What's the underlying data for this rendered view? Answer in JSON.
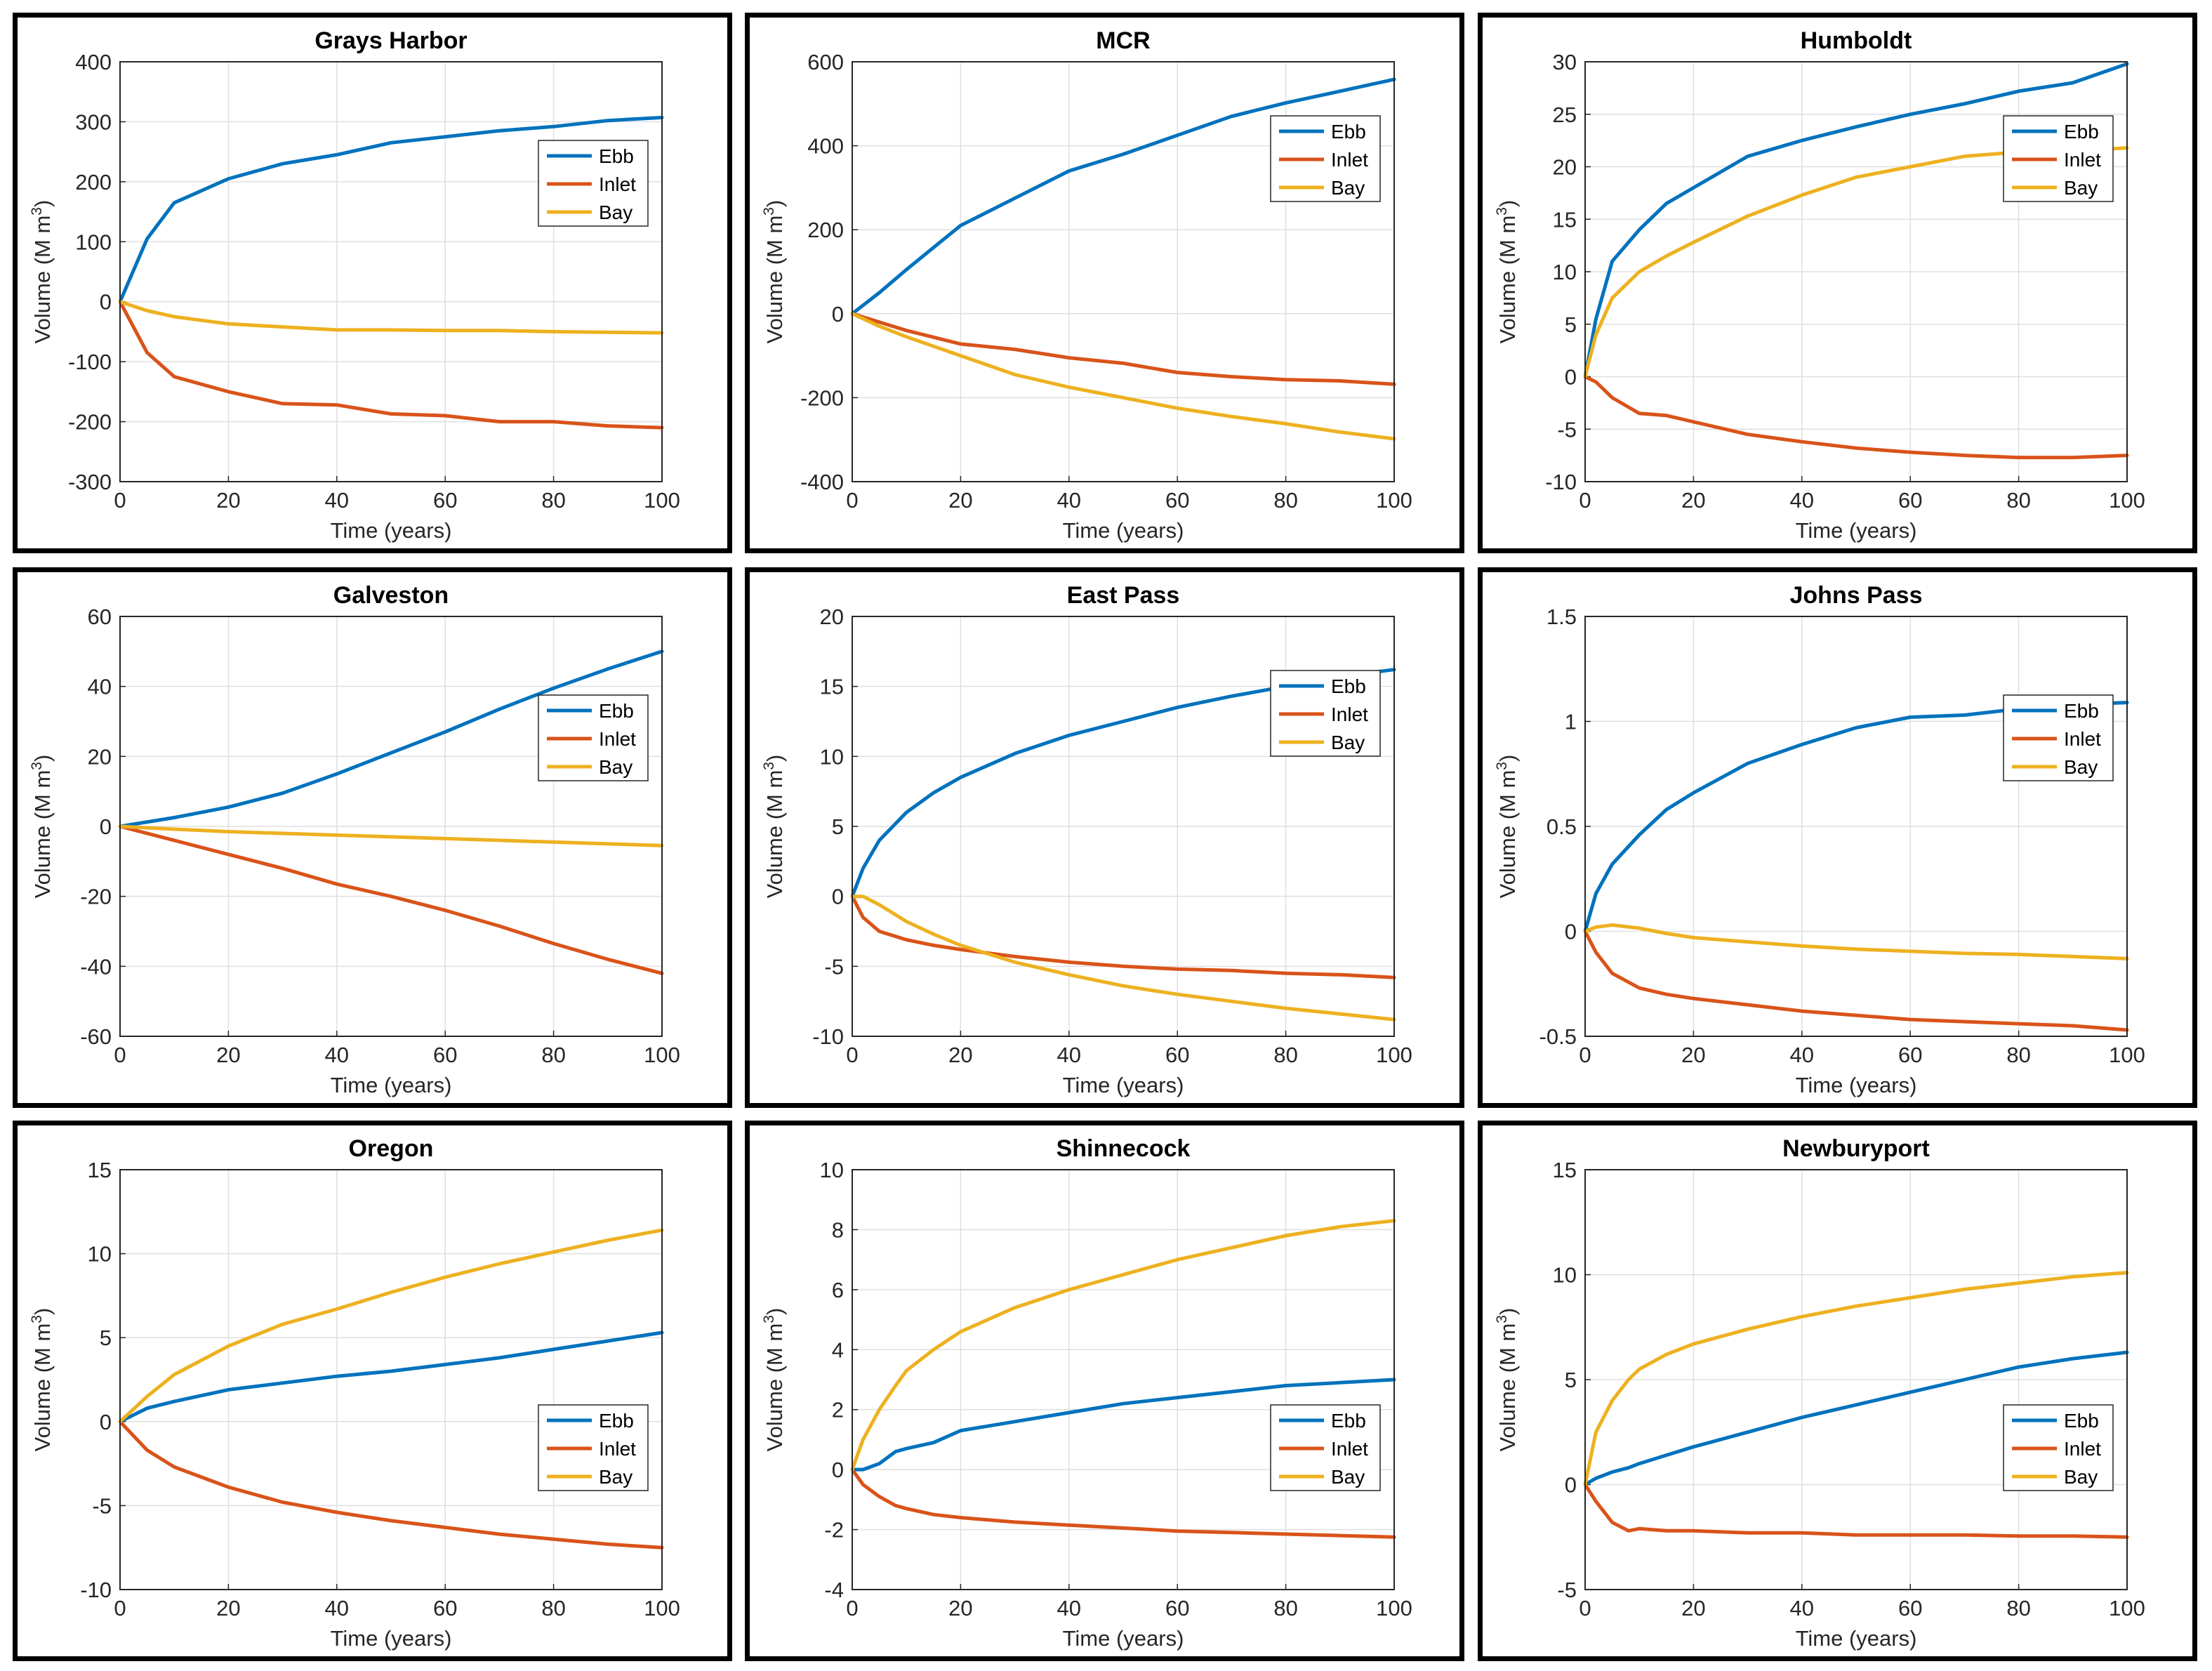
{
  "legend": [
    "Ebb",
    "Inlet",
    "Bay"
  ],
  "colors": {
    "Ebb": "#0072BD",
    "Inlet": "#D95319",
    "Bay": "#EDB120"
  },
  "xlabel": "Time (years)",
  "ylabel_main": "Volume (M m",
  "ylabel_sup": "3",
  "ylabel_close": ")",
  "chart_data": [
    {
      "type": "line",
      "title": "Grays Harbor",
      "legend_position": "right-middle",
      "xlim": [
        0,
        100
      ],
      "ylim": [
        -300,
        400
      ],
      "xticks": [
        0,
        20,
        40,
        60,
        80,
        100
      ],
      "yticks": [
        -300,
        -200,
        -100,
        0,
        100,
        200,
        300,
        400
      ],
      "x": [
        0,
        5,
        10,
        20,
        30,
        40,
        50,
        60,
        70,
        80,
        90,
        100
      ],
      "series": [
        {
          "name": "Ebb",
          "values": [
            0,
            105,
            165,
            205,
            230,
            245,
            265,
            275,
            285,
            292,
            302,
            307
          ]
        },
        {
          "name": "Inlet",
          "values": [
            0,
            -85,
            -125,
            -150,
            -170,
            -172,
            -187,
            -190,
            -200,
            -200,
            -207,
            -210
          ]
        },
        {
          "name": "Bay",
          "values": [
            0,
            -15,
            -25,
            -37,
            -42,
            -47,
            -47,
            -48,
            -48,
            -50,
            -51,
            -52
          ]
        }
      ]
    },
    {
      "type": "line",
      "title": "MCR",
      "legend_position": "right-upper",
      "xlim": [
        0,
        100
      ],
      "ylim": [
        -400,
        600
      ],
      "xticks": [
        0,
        20,
        40,
        60,
        80,
        100
      ],
      "yticks": [
        -400,
        -200,
        0,
        200,
        400,
        600
      ],
      "x": [
        0,
        5,
        10,
        20,
        30,
        40,
        50,
        60,
        70,
        80,
        90,
        100
      ],
      "series": [
        {
          "name": "Ebb",
          "values": [
            0,
            50,
            105,
            210,
            275,
            340,
            380,
            425,
            470,
            502,
            530,
            558
          ]
        },
        {
          "name": "Inlet",
          "values": [
            0,
            -20,
            -40,
            -72,
            -85,
            -105,
            -118,
            -140,
            -150,
            -157,
            -160,
            -168
          ]
        },
        {
          "name": "Bay",
          "values": [
            0,
            -30,
            -55,
            -100,
            -145,
            -175,
            -200,
            -225,
            -245,
            -262,
            -282,
            -298
          ]
        }
      ]
    },
    {
      "type": "line",
      "title": "Humboldt",
      "legend_position": "right-upper",
      "xlim": [
        0,
        100
      ],
      "ylim": [
        -10,
        30
      ],
      "xticks": [
        0,
        20,
        40,
        60,
        80,
        100
      ],
      "yticks": [
        -10,
        -5,
        0,
        5,
        10,
        15,
        20,
        25,
        30
      ],
      "x": [
        0,
        2,
        5,
        10,
        15,
        20,
        30,
        40,
        50,
        60,
        70,
        80,
        90,
        100
      ],
      "series": [
        {
          "name": "Ebb",
          "values": [
            0,
            5.5,
            11,
            14,
            16.5,
            18,
            21,
            22.5,
            23.8,
            25,
            26,
            27.2,
            28,
            29.8
          ]
        },
        {
          "name": "Inlet",
          "values": [
            0,
            -0.5,
            -2,
            -3.5,
            -3.7,
            -4.3,
            -5.5,
            -6.2,
            -6.8,
            -7.2,
            -7.5,
            -7.7,
            -7.7,
            -7.5
          ]
        },
        {
          "name": "Bay",
          "values": [
            0,
            4,
            7.5,
            10,
            11.5,
            12.8,
            15.3,
            17.3,
            19,
            20,
            21,
            21.4,
            21.5,
            21.8
          ]
        }
      ]
    },
    {
      "type": "line",
      "title": "Galveston",
      "legend_position": "right-middle",
      "xlim": [
        0,
        100
      ],
      "ylim": [
        -60,
        60
      ],
      "xticks": [
        0,
        20,
        40,
        60,
        80,
        100
      ],
      "yticks": [
        -60,
        -40,
        -20,
        0,
        20,
        40,
        60
      ],
      "x": [
        0,
        10,
        20,
        30,
        40,
        50,
        60,
        70,
        80,
        90,
        100
      ],
      "series": [
        {
          "name": "Ebb",
          "values": [
            0,
            2.5,
            5.5,
            9.5,
            15,
            21,
            27,
            33.5,
            39.5,
            45,
            50
          ]
        },
        {
          "name": "Inlet",
          "values": [
            0,
            -4,
            -8,
            -12,
            -16.5,
            -20,
            -24,
            -28.5,
            -33.5,
            -38,
            -42
          ]
        },
        {
          "name": "Bay",
          "values": [
            0,
            -0.8,
            -1.5,
            -2,
            -2.5,
            -3,
            -3.5,
            -4,
            -4.5,
            -5,
            -5.5
          ]
        }
      ]
    },
    {
      "type": "line",
      "title": "East Pass",
      "legend_position": "right-upper",
      "xlim": [
        0,
        100
      ],
      "ylim": [
        -10,
        20
      ],
      "xticks": [
        0,
        20,
        40,
        60,
        80,
        100
      ],
      "yticks": [
        -10,
        -5,
        0,
        5,
        10,
        15,
        20
      ],
      "x": [
        0,
        2,
        5,
        10,
        15,
        20,
        30,
        40,
        50,
        60,
        70,
        80,
        90,
        100
      ],
      "series": [
        {
          "name": "Ebb",
          "values": [
            0,
            2,
            4,
            6,
            7.4,
            8.5,
            10.2,
            11.5,
            12.5,
            13.5,
            14.3,
            15,
            15.7,
            16.2
          ]
        },
        {
          "name": "Inlet",
          "values": [
            0,
            -1.5,
            -2.5,
            -3.1,
            -3.5,
            -3.8,
            -4.3,
            -4.7,
            -5,
            -5.2,
            -5.3,
            -5.5,
            -5.6,
            -5.8
          ]
        },
        {
          "name": "Bay",
          "values": [
            0,
            0,
            -0.6,
            -1.8,
            -2.7,
            -3.5,
            -4.7,
            -5.6,
            -6.4,
            -7,
            -7.5,
            -8,
            -8.4,
            -8.8
          ]
        }
      ]
    },
    {
      "type": "line",
      "title": "Johns Pass",
      "legend_position": "right-middle",
      "xlim": [
        0,
        100
      ],
      "ylim": [
        -0.5,
        1.5
      ],
      "xticks": [
        0,
        20,
        40,
        60,
        80,
        100
      ],
      "yticks": [
        -0.5,
        0,
        0.5,
        1,
        1.5
      ],
      "x": [
        0,
        2,
        5,
        10,
        15,
        20,
        30,
        40,
        50,
        60,
        70,
        80,
        90,
        100
      ],
      "series": [
        {
          "name": "Ebb",
          "values": [
            0,
            0.18,
            0.32,
            0.46,
            0.58,
            0.66,
            0.8,
            0.89,
            0.97,
            1.02,
            1.03,
            1.06,
            1.08,
            1.09
          ]
        },
        {
          "name": "Inlet",
          "values": [
            0,
            -0.1,
            -0.2,
            -0.27,
            -0.3,
            -0.32,
            -0.35,
            -0.38,
            -0.4,
            -0.42,
            -0.43,
            -0.44,
            -0.45,
            -0.47
          ]
        },
        {
          "name": "Bay",
          "values": [
            0,
            0.02,
            0.03,
            0.015,
            -0.01,
            -0.03,
            -0.05,
            -0.07,
            -0.085,
            -0.095,
            -0.105,
            -0.11,
            -0.12,
            -0.13
          ]
        }
      ]
    },
    {
      "type": "line",
      "title": "Oregon",
      "legend_position": "right-lower",
      "xlim": [
        0,
        100
      ],
      "ylim": [
        -10,
        15
      ],
      "xticks": [
        0,
        20,
        40,
        60,
        80,
        100
      ],
      "yticks": [
        -10,
        -5,
        0,
        5,
        10,
        15
      ],
      "x": [
        0,
        5,
        10,
        20,
        30,
        40,
        50,
        60,
        70,
        80,
        90,
        100
      ],
      "series": [
        {
          "name": "Ebb",
          "values": [
            0,
            0.8,
            1.2,
            1.9,
            2.3,
            2.7,
            3,
            3.4,
            3.8,
            4.3,
            4.8,
            5.3
          ]
        },
        {
          "name": "Inlet",
          "values": [
            0,
            -1.7,
            -2.7,
            -3.9,
            -4.8,
            -5.4,
            -5.9,
            -6.3,
            -6.7,
            -7,
            -7.3,
            -7.5
          ]
        },
        {
          "name": "Bay",
          "values": [
            0,
            1.5,
            2.8,
            4.5,
            5.8,
            6.7,
            7.7,
            8.6,
            9.4,
            10.1,
            10.8,
            11.4
          ]
        }
      ]
    },
    {
      "type": "line",
      "title": "Shinnecock",
      "legend_position": "right-lower",
      "xlim": [
        0,
        100
      ],
      "ylim": [
        -4,
        10
      ],
      "xticks": [
        0,
        20,
        40,
        60,
        80,
        100
      ],
      "yticks": [
        -4,
        -2,
        0,
        2,
        4,
        6,
        8,
        10
      ],
      "x": [
        0,
        2,
        5,
        8,
        10,
        15,
        20,
        30,
        40,
        50,
        60,
        70,
        80,
        90,
        100
      ],
      "series": [
        {
          "name": "Ebb",
          "values": [
            0,
            0,
            0.2,
            0.6,
            0.7,
            0.9,
            1.3,
            1.6,
            1.9,
            2.2,
            2.4,
            2.6,
            2.8,
            2.9,
            3
          ]
        },
        {
          "name": "Inlet",
          "values": [
            0,
            -0.5,
            -0.9,
            -1.2,
            -1.3,
            -1.5,
            -1.6,
            -1.75,
            -1.85,
            -1.95,
            -2.05,
            -2.1,
            -2.15,
            -2.2,
            -2.25
          ]
        },
        {
          "name": "Bay",
          "values": [
            0,
            1,
            2,
            2.8,
            3.3,
            4,
            4.6,
            5.4,
            6,
            6.5,
            7,
            7.4,
            7.8,
            8.1,
            8.3
          ]
        }
      ]
    },
    {
      "type": "line",
      "title": "Newburyport",
      "legend_position": "right-lower",
      "xlim": [
        0,
        100
      ],
      "ylim": [
        -5,
        15
      ],
      "xticks": [
        0,
        20,
        40,
        60,
        80,
        100
      ],
      "yticks": [
        -5,
        0,
        5,
        10,
        15
      ],
      "x": [
        0,
        2,
        5,
        8,
        10,
        15,
        20,
        30,
        40,
        50,
        60,
        70,
        80,
        90,
        100
      ],
      "series": [
        {
          "name": "Ebb",
          "values": [
            0,
            0.3,
            0.6,
            0.8,
            1,
            1.4,
            1.8,
            2.5,
            3.2,
            3.8,
            4.4,
            5,
            5.6,
            6,
            6.3
          ]
        },
        {
          "name": "Inlet",
          "values": [
            0,
            -0.8,
            -1.8,
            -2.2,
            -2.1,
            -2.2,
            -2.2,
            -2.3,
            -2.3,
            -2.4,
            -2.4,
            -2.4,
            -2.45,
            -2.45,
            -2.5
          ]
        },
        {
          "name": "Bay",
          "values": [
            0,
            2.5,
            4,
            5,
            5.5,
            6.2,
            6.7,
            7.4,
            8,
            8.5,
            8.9,
            9.3,
            9.6,
            9.9,
            10.1
          ]
        }
      ]
    }
  ]
}
